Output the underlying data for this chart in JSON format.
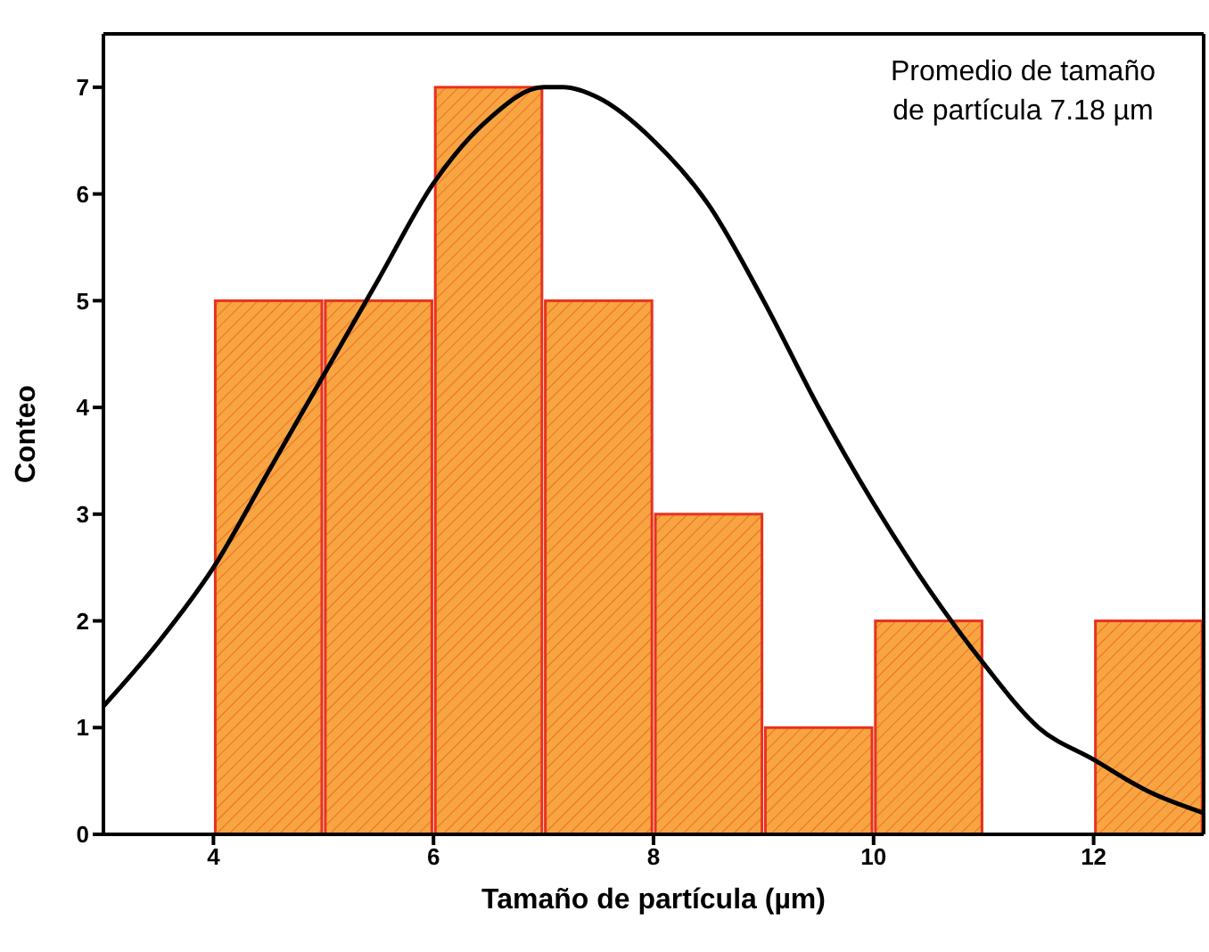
{
  "chart_data": {
    "type": "histogram",
    "xlabel": "Tamaño de partícula (µm)",
    "ylabel": "Conteo",
    "bins": [
      4,
      5,
      6,
      7,
      8,
      9,
      10,
      11,
      12,
      13
    ],
    "values": [
      5,
      5,
      7,
      5,
      3,
      1,
      2,
      0,
      2
    ],
    "color": "#f7a540",
    "series": [
      {
        "type": "line",
        "color": "#000000",
        "x": [
          3,
          3.5,
          4,
          4.5,
          5,
          5.5,
          6,
          6.5,
          7,
          7.18,
          7.5,
          8,
          8.5,
          9,
          9.5,
          10,
          10.5,
          11,
          11.5,
          12,
          12.5,
          13
        ],
        "values": [
          1.2,
          1.8,
          2.5,
          3.4,
          4.3,
          5.2,
          6.1,
          6.7,
          7.0,
          7.0,
          6.9,
          6.5,
          5.9,
          5.0,
          4.0,
          3.1,
          2.3,
          1.6,
          1.0,
          0.7,
          0.4,
          0.2
        ]
      }
    ],
    "xlim": [
      3,
      13
    ],
    "xticks": [
      4,
      6,
      8,
      10,
      12
    ],
    "ylim": [
      0,
      7.5
    ],
    "yticks": [
      0,
      1,
      2,
      3,
      4,
      5,
      6,
      7
    ],
    "grid": false,
    "legend": false,
    "annotations": [
      "Promedio de tamaño\nde partícula 7.18 µm"
    ]
  }
}
